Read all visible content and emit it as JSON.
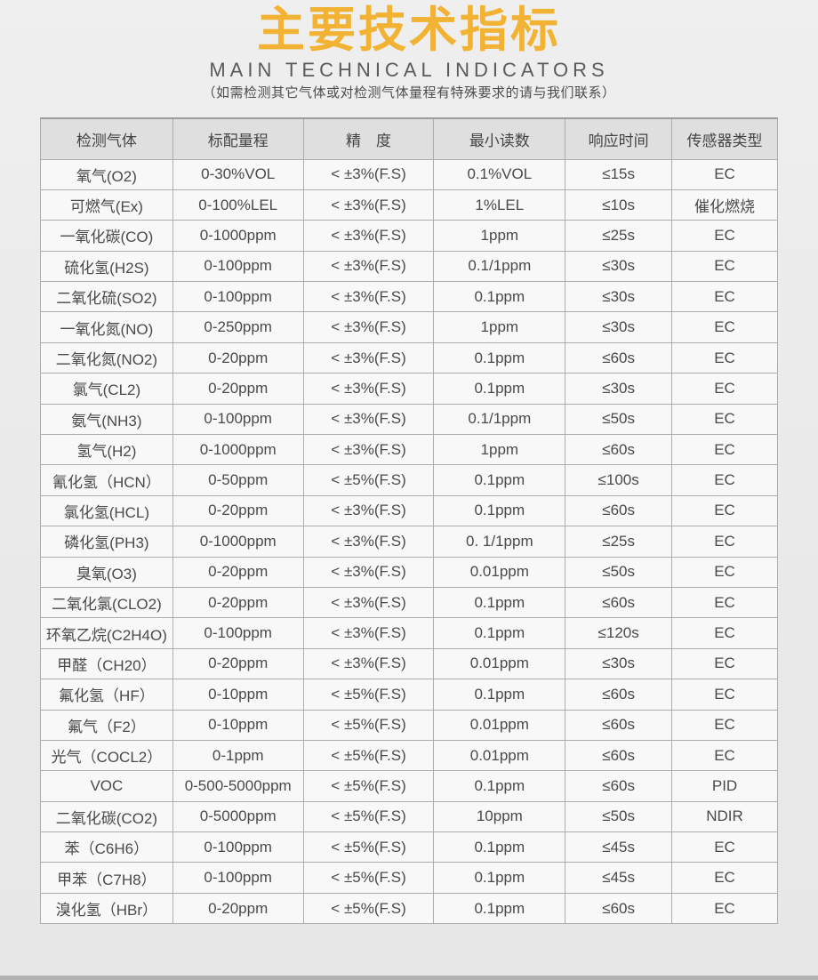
{
  "header": {
    "title": "主要技术指标",
    "subtitle": "MAIN TECHNICAL INDICATORS",
    "note": "（如需检测其它气体或对检测气体量程有特殊要求的请与我们联系）"
  },
  "colors": {
    "title_orange": "#f2b233",
    "header_row_bg": "#dfdfdf",
    "cell_bg": "#f8f8f8",
    "border_gray": "#adadad",
    "text_gray": "#4a4a4a",
    "page_bg": "#e9e9e9",
    "bottom_bar_gray": "#b2b2b2"
  },
  "chart_data": {
    "type": "table",
    "columns": [
      "检测气体",
      "标配量程",
      "精　度",
      "最小读数",
      "响应时间",
      "传感器类型"
    ],
    "field_order": [
      "gas",
      "range",
      "precision",
      "min_reading",
      "response_time",
      "sensor"
    ],
    "rows": [
      {
        "gas": "氧气(O2)",
        "range": "0-30%VOL",
        "precision": "< ±3%(F.S)",
        "min_reading": "0.1%VOL",
        "response_time": "≤15s",
        "sensor": "EC"
      },
      {
        "gas": "可燃气(Ex)",
        "range": "0-100%LEL",
        "precision": "< ±3%(F.S)",
        "min_reading": "1%LEL",
        "response_time": "≤10s",
        "sensor": "催化燃烧"
      },
      {
        "gas": "一氧化碳(CO)",
        "range": "0-1000ppm",
        "precision": "< ±3%(F.S)",
        "min_reading": "1ppm",
        "response_time": "≤25s",
        "sensor": "EC"
      },
      {
        "gas": "硫化氢(H2S)",
        "range": "0-100ppm",
        "precision": "< ±3%(F.S)",
        "min_reading": "0.1/1ppm",
        "response_time": "≤30s",
        "sensor": "EC"
      },
      {
        "gas": "二氧化硫(SO2)",
        "range": "0-100ppm",
        "precision": "< ±3%(F.S)",
        "min_reading": "0.1ppm",
        "response_time": "≤30s",
        "sensor": "EC"
      },
      {
        "gas": "一氧化氮(NO)",
        "range": "0-250ppm",
        "precision": "< ±3%(F.S)",
        "min_reading": "1ppm",
        "response_time": "≤30s",
        "sensor": "EC"
      },
      {
        "gas": "二氧化氮(NO2)",
        "range": "0-20ppm",
        "precision": "< ±3%(F.S)",
        "min_reading": "0.1ppm",
        "response_time": "≤60s",
        "sensor": "EC"
      },
      {
        "gas": "氯气(CL2)",
        "range": "0-20ppm",
        "precision": "< ±3%(F.S)",
        "min_reading": "0.1ppm",
        "response_time": "≤30s",
        "sensor": "EC"
      },
      {
        "gas": "氨气(NH3)",
        "range": "0-100ppm",
        "precision": "< ±3%(F.S)",
        "min_reading": "0.1/1ppm",
        "response_time": "≤50s",
        "sensor": "EC"
      },
      {
        "gas": "氢气(H2)",
        "range": "0-1000ppm",
        "precision": "< ±3%(F.S)",
        "min_reading": "1ppm",
        "response_time": "≤60s",
        "sensor": "EC"
      },
      {
        "gas": "氰化氢（HCN）",
        "range": "0-50ppm",
        "precision": "< ±5%(F.S)",
        "min_reading": "0.1ppm",
        "response_time": "≤100s",
        "sensor": "EC"
      },
      {
        "gas": "氯化氢(HCL)",
        "range": "0-20ppm",
        "precision": "< ±3%(F.S)",
        "min_reading": "0.1ppm",
        "response_time": "≤60s",
        "sensor": "EC"
      },
      {
        "gas": "磷化氢(PH3)",
        "range": "0-1000ppm",
        "precision": "< ±3%(F.S)",
        "min_reading": "0. 1/1ppm",
        "response_time": "≤25s",
        "sensor": "EC"
      },
      {
        "gas": "臭氧(O3)",
        "range": "0-20ppm",
        "precision": "< ±3%(F.S)",
        "min_reading": "0.01ppm",
        "response_time": "≤50s",
        "sensor": "EC"
      },
      {
        "gas": "二氧化氯(CLO2)",
        "range": "0-20ppm",
        "precision": "< ±3%(F.S)",
        "min_reading": "0.1ppm",
        "response_time": "≤60s",
        "sensor": "EC"
      },
      {
        "gas": "环氧乙烷(C2H4O)",
        "range": "0-100ppm",
        "precision": "< ±3%(F.S)",
        "min_reading": "0.1ppm",
        "response_time": "≤120s",
        "sensor": "EC"
      },
      {
        "gas": "甲醛（CH20）",
        "range": "0-20ppm",
        "precision": "< ±3%(F.S)",
        "min_reading": "0.01ppm",
        "response_time": "≤30s",
        "sensor": "EC"
      },
      {
        "gas": "氟化氢（HF）",
        "range": "0-10ppm",
        "precision": "< ±5%(F.S)",
        "min_reading": "0.1ppm",
        "response_time": "≤60s",
        "sensor": "EC"
      },
      {
        "gas": "氟气（F2）",
        "range": "0-10ppm",
        "precision": "< ±5%(F.S)",
        "min_reading": "0.01ppm",
        "response_time": "≤60s",
        "sensor": "EC"
      },
      {
        "gas": "光气（COCL2）",
        "range": "0-1ppm",
        "precision": "< ±5%(F.S)",
        "min_reading": "0.01ppm",
        "response_time": "≤60s",
        "sensor": "EC"
      },
      {
        "gas": "VOC",
        "range": "0-500-5000ppm",
        "precision": "< ±5%(F.S)",
        "min_reading": "0.1ppm",
        "response_time": "≤60s",
        "sensor": "PID"
      },
      {
        "gas": "二氧化碳(CO2)",
        "range": "0-5000ppm",
        "precision": "< ±5%(F.S)",
        "min_reading": "10ppm",
        "response_time": "≤50s",
        "sensor": "NDIR"
      },
      {
        "gas": "苯（C6H6）",
        "range": "0-100ppm",
        "precision": "< ±5%(F.S)",
        "min_reading": "0.1ppm",
        "response_time": "≤45s",
        "sensor": "EC"
      },
      {
        "gas": "甲苯（C7H8）",
        "range": "0-100ppm",
        "precision": "< ±5%(F.S)",
        "min_reading": "0.1ppm",
        "response_time": "≤45s",
        "sensor": "EC"
      },
      {
        "gas": "溴化氢（HBr）",
        "range": "0-20ppm",
        "precision": "< ±5%(F.S)",
        "min_reading": "0.1ppm",
        "response_time": "≤60s",
        "sensor": "EC"
      }
    ],
    "column_widths_pct": [
      17.95,
      17.71,
      17.71,
      17.83,
      14.46,
      14.34
    ]
  }
}
